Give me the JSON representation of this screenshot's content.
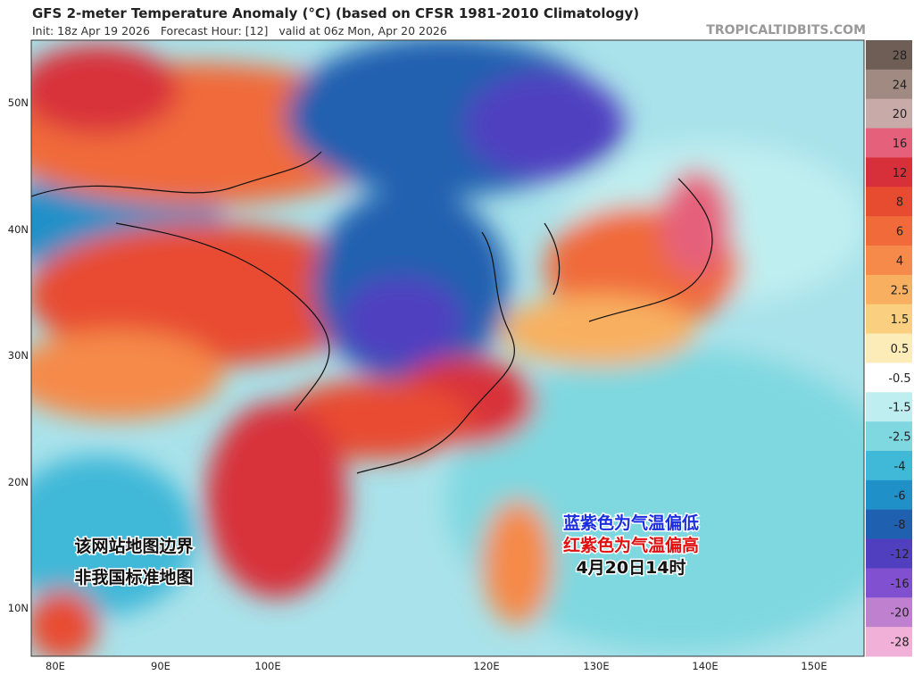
{
  "header": {
    "title": "GFS 2-meter Temperature Anomaly (°C) (based on CFSR 1981-2010 Climatology)",
    "subtitle": "Init: 18z Apr 19 2026   Forecast Hour: [12]   valid at 06z Mon, Apr 20 2026",
    "site": "TROPICALTIDBITS.COM"
  },
  "map": {
    "lat_labels": [
      "50N",
      "40N",
      "30N",
      "20N",
      "10N"
    ],
    "lon_labels": [
      "80E",
      "90E",
      "100E",
      "120E",
      "130E",
      "140E",
      "150E"
    ]
  },
  "colorbar": {
    "labels": [
      "28",
      "24",
      "20",
      "16",
      "12",
      "8",
      "6",
      "4",
      "2.5",
      "1.5",
      "0.5",
      "-0.5",
      "-1.5",
      "-2.5",
      "-4",
      "-6",
      "-8",
      "-12",
      "-16",
      "-20",
      "-28"
    ],
    "colors": [
      "#6e5e56",
      "#a08a82",
      "#c8aaa8",
      "#e5607a",
      "#d8303a",
      "#e84c30",
      "#f06a3a",
      "#f58a4a",
      "#f8b060",
      "#fad080",
      "#fcecb8",
      "#ffffff",
      "#bfeef0",
      "#7fd8e0",
      "#40b8d8",
      "#2090c8",
      "#2060b0",
      "#5040c0",
      "#8050d0",
      "#c080d0",
      "#f0b0d8"
    ]
  },
  "annotations": {
    "legend_lines": [
      "蓝紫色为气温偏低",
      "红紫色为气温偏高",
      "4月20日14时"
    ],
    "disclaimer": [
      "该网站地图边界",
      "非我国标准地图"
    ]
  }
}
